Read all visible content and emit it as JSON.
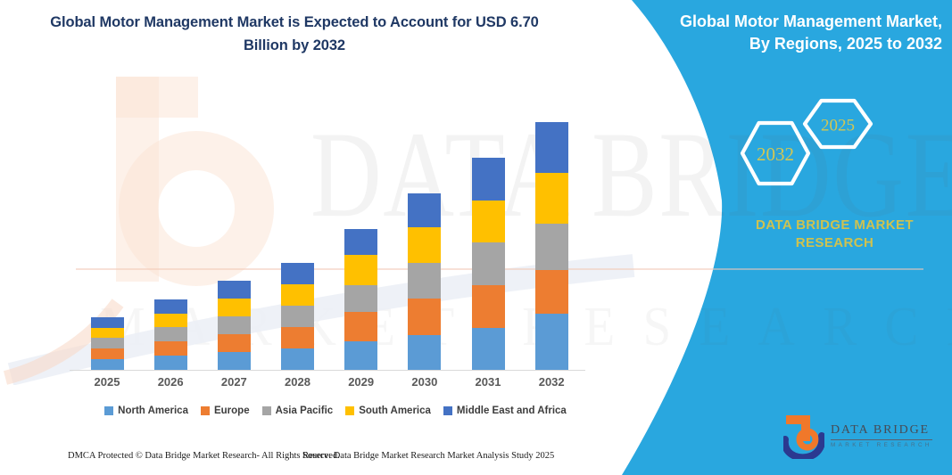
{
  "header": {
    "title_line1": "Global Motor Management Market is Expected to Account for USD 6.70",
    "title_line2": "Billion by 2032"
  },
  "side_panel": {
    "panel_color": "#29A7DF",
    "accent_gold": "#CFC24F",
    "title_line1": "Global Motor Management Market,",
    "title_line2": "By Regions, 2025 to 2032",
    "hexagons": [
      {
        "label": "2032"
      },
      {
        "label": "2025"
      }
    ],
    "brand_line1": "DATA BRIDGE MARKET",
    "brand_line2": "RESEARCH"
  },
  "chart_data": {
    "type": "bar",
    "stacked": true,
    "title": "Global Motor Management Market is Expected to Account for USD 6.70 Billion by 2032",
    "unit": "USD Billion",
    "categories": [
      "2025",
      "2026",
      "2027",
      "2028",
      "2029",
      "2030",
      "2031",
      "2032"
    ],
    "series": [
      {
        "name": "North America",
        "color": "#5B9BD5",
        "values": [
          0.29,
          0.39,
          0.49,
          0.58,
          0.76,
          0.95,
          1.14,
          1.53
        ]
      },
      {
        "name": "Europe",
        "color": "#ED7D31",
        "values": [
          0.29,
          0.38,
          0.48,
          0.58,
          0.8,
          0.98,
          1.15,
          1.16
        ]
      },
      {
        "name": "Asia Pacific",
        "color": "#A5A5A5",
        "values": [
          0.28,
          0.38,
          0.48,
          0.58,
          0.72,
          0.96,
          1.16,
          1.27
        ]
      },
      {
        "name": "South America",
        "color": "#FFC000",
        "values": [
          0.28,
          0.38,
          0.48,
          0.58,
          0.84,
          0.96,
          1.12,
          1.37
        ]
      },
      {
        "name": "Middle East and Africa",
        "color": "#4472C4",
        "values": [
          0.29,
          0.38,
          0.48,
          0.58,
          0.68,
          0.92,
          1.16,
          1.37
        ]
      }
    ],
    "totals": [
      1.43,
      1.91,
      2.41,
      2.9,
      3.8,
      4.77,
      5.73,
      6.7
    ],
    "ylim": [
      0,
      7
    ],
    "grid": false,
    "legend_position": "bottom",
    "watermark_text_1": "DATA BRIDGE",
    "watermark_text_2": "MARKET RESEARCH"
  },
  "footer": {
    "dmca": "DMCA Protected © Data Bridge Market Research-  All Rights Reserved.",
    "source": "Source: Data Bridge Market Research  Market Analysis Study 2025"
  },
  "logo": {
    "name_top": "DATA BRIDGE",
    "name_bottom": "MARKET RESEARCH"
  }
}
